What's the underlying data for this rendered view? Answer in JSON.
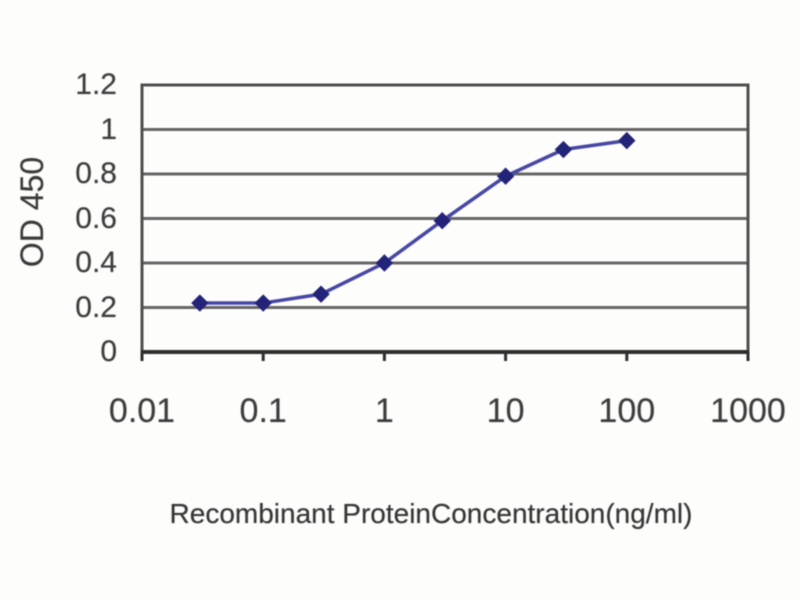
{
  "chart_data": {
    "type": "line",
    "x_scale": "log",
    "x": [
      0.03,
      0.1,
      0.3,
      1,
      3,
      10,
      30,
      100
    ],
    "series": [
      {
        "name": "OD 450",
        "values": [
          0.22,
          0.22,
          0.26,
          0.4,
          0.59,
          0.79,
          0.91,
          0.95
        ],
        "line_color": "#4747a6",
        "marker": "diamond",
        "marker_color": "#232378"
      }
    ],
    "title": "",
    "xlabel": "Recombinant ProteinConcentration(ng/ml)",
    "ylabel": "OD 450",
    "xlim": [
      0.01,
      1000
    ],
    "ylim": [
      0,
      1.2
    ],
    "x_ticks": [
      0.01,
      0.1,
      1,
      10,
      100,
      1000
    ],
    "x_tick_labels": [
      "0.01",
      "0.1",
      "1",
      "10",
      "100",
      "1000"
    ],
    "y_ticks": [
      0,
      0.2,
      0.4,
      0.6,
      0.8,
      1,
      1.2
    ],
    "y_tick_labels": [
      "0",
      "0.2",
      "0.4",
      "0.6",
      "0.8",
      "1",
      "1.2"
    ],
    "grid": "horizontal",
    "legend": "none",
    "colors": {
      "grid": "#666666",
      "plot_border": "#4f4f4f",
      "axis": "#2e2e2e",
      "tick": "#2e2e2e",
      "text": "#3d3d3d",
      "background": "#fdfdfc"
    }
  }
}
